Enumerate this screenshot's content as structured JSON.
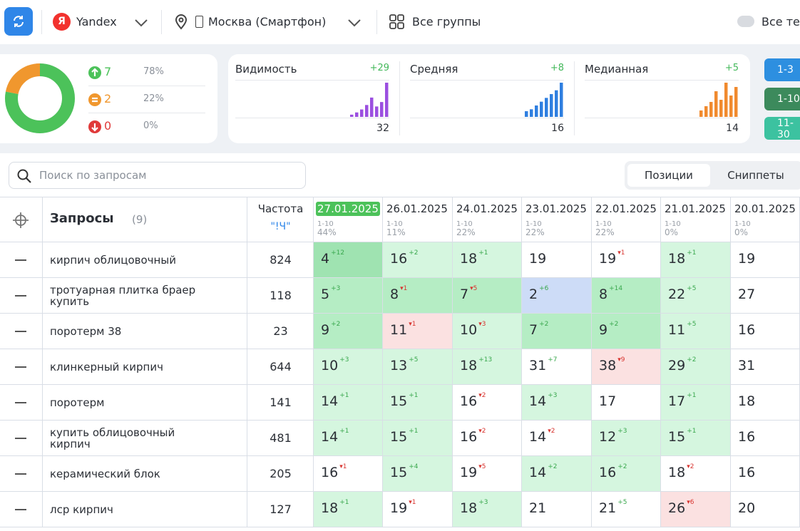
{
  "toolbar": {
    "engine_logo": "Я",
    "engine": "Yandex",
    "region": "Москва (Смартфон)",
    "groups": "Все группы",
    "tags": "Все теги"
  },
  "summary": {
    "items": [
      {
        "count": 7,
        "share": {
          "value": 78,
          "label": "78%"
        },
        "color": "#4cc25a"
      },
      {
        "count": 2,
        "share": {
          "value": 22,
          "label": "22%"
        },
        "color": "#f0972e"
      },
      {
        "count": 0,
        "share": {
          "value": 0,
          "label": "0%"
        },
        "color": "#e03a3a"
      }
    ]
  },
  "cards": [
    {
      "title": "Видимость",
      "delta": "+29",
      "value": 32,
      "color": "#9b4fe0",
      "bars": [
        3,
        6,
        10,
        16,
        26,
        14,
        20,
        46
      ]
    },
    {
      "title": "Средняя",
      "delta": "+8",
      "value": 16,
      "color": "#2f7fe0",
      "bars": [
        3,
        4,
        6,
        8,
        10,
        12,
        14,
        18
      ]
    },
    {
      "title": "Медианная",
      "delta": "+5",
      "value": 14,
      "color": "#f08a2e",
      "bars": [
        3,
        5,
        7,
        12,
        8,
        16,
        10,
        14
      ]
    }
  ],
  "ranges": [
    {
      "label": "1-3",
      "color": "#2d8fe0"
    },
    {
      "label": "1-10",
      "color": "#3c8a5c"
    },
    {
      "label": "11-30",
      "color": "#3cc2a0"
    }
  ],
  "search": {
    "placeholder": "Поиск по запросам"
  },
  "tabs": [
    "Позиции",
    "Сниппеты"
  ],
  "table": {
    "header": {
      "queries": "Запросы",
      "count": "(9)",
      "freq": "Частота",
      "freq_type": "\"!Ч\""
    },
    "dates": [
      {
        "date": "27.01.2025",
        "range": "1-10",
        "share": "44%"
      },
      {
        "date": "26.01.2025",
        "range": "1-10",
        "share": "11%"
      },
      {
        "date": "24.01.2025",
        "range": "1-10",
        "share": "22%"
      },
      {
        "date": "23.01.2025",
        "range": "1-10",
        "share": "22%"
      },
      {
        "date": "22.01.2025",
        "range": "1-10",
        "share": "22%"
      },
      {
        "date": "21.01.2025",
        "range": "1-10",
        "share": "0%"
      },
      {
        "date": "20.01.2025",
        "range": "1-10",
        "share": "0%"
      }
    ],
    "rows": [
      {
        "query": "кирпич облицовочный",
        "freq": 824,
        "cells": [
          {
            "pos": 4,
            "delta": "+12",
            "tone": "g3"
          },
          {
            "pos": 16,
            "delta": "+2",
            "tone": "g1"
          },
          {
            "pos": 18,
            "delta": "+1",
            "tone": "g1"
          },
          {
            "pos": 19,
            "tone": "none"
          },
          {
            "pos": 19,
            "delta": "▾1",
            "tone": "none"
          },
          {
            "pos": 18,
            "delta": "+1",
            "tone": "g1"
          },
          {
            "pos": 19,
            "tone": "none"
          }
        ]
      },
      {
        "query": "тротуарная плитка браер купить",
        "freq": 118,
        "cells": [
          {
            "pos": 5,
            "delta": "+3",
            "tone": "g2"
          },
          {
            "pos": 8,
            "delta": "▾1",
            "tone": "g2"
          },
          {
            "pos": 7,
            "delta": "▾5",
            "tone": "g2"
          },
          {
            "pos": 2,
            "delta": "+6",
            "tone": "blue"
          },
          {
            "pos": 8,
            "delta": "+14",
            "tone": "g2"
          },
          {
            "pos": 22,
            "delta": "+5",
            "tone": "g1"
          },
          {
            "pos": 27,
            "tone": "none"
          }
        ]
      },
      {
        "query": "поротерм 38",
        "freq": 23,
        "cells": [
          {
            "pos": 9,
            "delta": "+2",
            "tone": "g2"
          },
          {
            "pos": 11,
            "delta": "▾1",
            "tone": "red"
          },
          {
            "pos": 10,
            "delta": "▾3",
            "tone": "g1"
          },
          {
            "pos": 7,
            "delta": "+2",
            "tone": "g2"
          },
          {
            "pos": 9,
            "delta": "+2",
            "tone": "g2"
          },
          {
            "pos": 11,
            "delta": "+5",
            "tone": "g1"
          },
          {
            "pos": 16,
            "tone": "none"
          }
        ]
      },
      {
        "query": "клинкерный кирпич",
        "freq": 644,
        "cells": [
          {
            "pos": 10,
            "delta": "+3",
            "tone": "g1"
          },
          {
            "pos": 13,
            "delta": "+5",
            "tone": "g1"
          },
          {
            "pos": 18,
            "delta": "+13",
            "tone": "g1"
          },
          {
            "pos": 31,
            "delta": "+7",
            "tone": "none"
          },
          {
            "pos": 38,
            "delta": "▾9",
            "tone": "red"
          },
          {
            "pos": 29,
            "delta": "+2",
            "tone": "g1"
          },
          {
            "pos": 31,
            "tone": "none"
          }
        ]
      },
      {
        "query": "поротерм",
        "freq": 141,
        "cells": [
          {
            "pos": 14,
            "delta": "+1",
            "tone": "g1"
          },
          {
            "pos": 15,
            "delta": "+1",
            "tone": "g1"
          },
          {
            "pos": 16,
            "delta": "▾2",
            "tone": "none"
          },
          {
            "pos": 14,
            "delta": "+3",
            "tone": "g1"
          },
          {
            "pos": 17,
            "tone": "none"
          },
          {
            "pos": 17,
            "delta": "+1",
            "tone": "g1"
          },
          {
            "pos": 18,
            "tone": "none"
          }
        ]
      },
      {
        "query": "купить облицовочный кирпич",
        "freq": 481,
        "cells": [
          {
            "pos": 14,
            "delta": "+1",
            "tone": "g1"
          },
          {
            "pos": 15,
            "delta": "+1",
            "tone": "g1"
          },
          {
            "pos": 16,
            "delta": "▾2",
            "tone": "none"
          },
          {
            "pos": 14,
            "delta": "▾2",
            "tone": "none"
          },
          {
            "pos": 12,
            "delta": "+3",
            "tone": "g1"
          },
          {
            "pos": 15,
            "delta": "+1",
            "tone": "g1"
          },
          {
            "pos": 16,
            "tone": "none"
          }
        ]
      },
      {
        "query": "керамический блок",
        "freq": 205,
        "cells": [
          {
            "pos": 16,
            "delta": "▾1",
            "tone": "none"
          },
          {
            "pos": 15,
            "delta": "+4",
            "tone": "g1"
          },
          {
            "pos": 19,
            "delta": "▾5",
            "tone": "none"
          },
          {
            "pos": 14,
            "delta": "+2",
            "tone": "g1"
          },
          {
            "pos": 16,
            "delta": "+2",
            "tone": "g1"
          },
          {
            "pos": 18,
            "delta": "▾2",
            "tone": "none"
          },
          {
            "pos": 16,
            "tone": "none"
          }
        ]
      },
      {
        "query": "лср кирпич",
        "freq": 127,
        "cells": [
          {
            "pos": 18,
            "delta": "+1",
            "tone": "g1"
          },
          {
            "pos": 19,
            "delta": "▾1",
            "tone": "none"
          },
          {
            "pos": 18,
            "delta": "+3",
            "tone": "g1"
          },
          {
            "pos": 21,
            "tone": "none"
          },
          {
            "pos": 21,
            "delta": "+5",
            "tone": "none"
          },
          {
            "pos": 26,
            "delta": "▾6",
            "tone": "red"
          },
          {
            "pos": 20,
            "tone": "none"
          }
        ]
      }
    ]
  }
}
